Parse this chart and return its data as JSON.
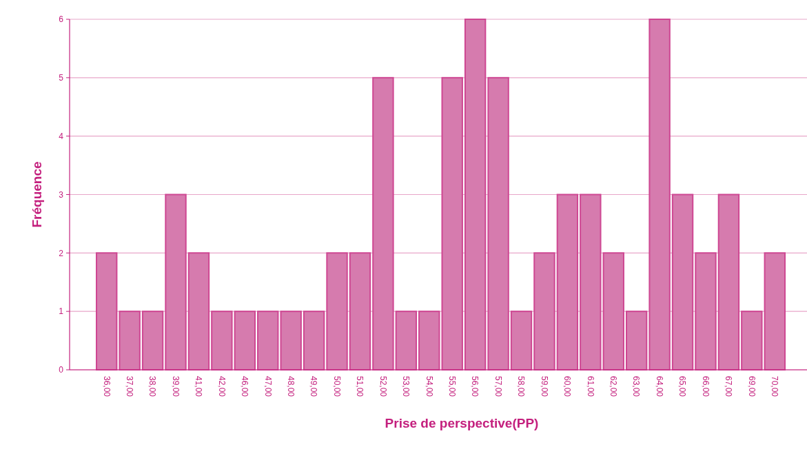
{
  "chart_data": {
    "type": "bar",
    "xlabel": "Prise de perspective(PP)",
    "ylabel": "Fréquence",
    "categories": [
      "36,00",
      "37,00",
      "38,00",
      "39,00",
      "41,00",
      "42,00",
      "46,00",
      "47,00",
      "48,00",
      "49,00",
      "50,00",
      "51,00",
      "52,00",
      "53,00",
      "54,00",
      "55,00",
      "56,00",
      "57,00",
      "58,00",
      "59,00",
      "60,00",
      "61,00",
      "62,00",
      "63,00",
      "64,00",
      "65,00",
      "66,00",
      "67,00",
      "69,00",
      "70,00"
    ],
    "values": [
      2,
      1,
      1,
      3,
      2,
      1,
      1,
      1,
      1,
      1,
      2,
      2,
      5,
      1,
      1,
      5,
      6,
      5,
      1,
      2,
      3,
      3,
      2,
      1,
      6,
      3,
      2,
      3,
      1,
      2
    ],
    "color": "#d67bae",
    "ylim": [
      0,
      6
    ],
    "yticks": [
      0,
      1,
      2,
      3,
      4,
      5,
      6
    ],
    "grid": "y"
  }
}
